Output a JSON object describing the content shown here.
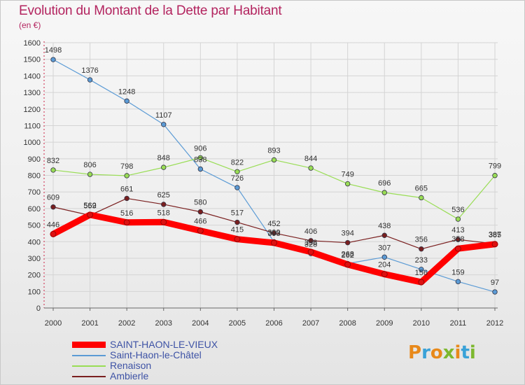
{
  "header": {
    "title": "Evolution du Montant de la Dette par Habitant",
    "subtitle": "(en €)"
  },
  "logo": {
    "text": "Proxiti",
    "colors": [
      "#e8891a",
      "#3aa2d8",
      "#e8891a",
      "#7db82f",
      "#e8891a",
      "#3aa2d8",
      "#7db82f"
    ]
  },
  "chart_data": {
    "type": "line",
    "title": "Evolution du Montant de la Dette par Habitant",
    "subtitle": "(en €)",
    "x": [
      "2000",
      "2001",
      "2002",
      "2003",
      "2004",
      "2005",
      "2006",
      "2007",
      "2008",
      "2009",
      "2010",
      "2011",
      "2012"
    ],
    "ylim": [
      0,
      1600
    ],
    "yticks": [
      0,
      100,
      200,
      300,
      400,
      500,
      600,
      700,
      800,
      900,
      1000,
      1100,
      1200,
      1300,
      1400,
      1500,
      1600
    ],
    "grid": true,
    "legend_position": "bottom-left",
    "series": [
      {
        "name": "SAINT-HAON-LE-VIEUX",
        "color": "#ff0000",
        "values": [
          446,
          562,
          516,
          518,
          466,
          415,
          393,
          338,
          262,
          204,
          156,
          358,
          385
        ],
        "labels": [
          "446",
          "562",
          "516",
          "518",
          "466",
          "415",
          "393",
          "338",
          "262",
          "204",
          "156",
          "358",
          "385"
        ]
      },
      {
        "name": "Saint-Haon-le-Châtel",
        "color": "#5b9bd5",
        "values": [
          1498,
          1376,
          1248,
          1107,
          838,
          726,
          399,
          328,
          268,
          307,
          233,
          159,
          97
        ],
        "labels": [
          "1498",
          "1376",
          "1248",
          "1107",
          "838",
          "726",
          "399",
          "328",
          "268",
          "307",
          "233",
          "159",
          "97"
        ]
      },
      {
        "name": "Renaison",
        "color": "#99dd55",
        "values": [
          832,
          806,
          798,
          848,
          906,
          822,
          893,
          844,
          749,
          696,
          665,
          536,
          799
        ],
        "labels": [
          "832",
          "806",
          "798",
          "848",
          "906",
          "822",
          "893",
          "844",
          "749",
          "696",
          "665",
          "536",
          "799"
        ]
      },
      {
        "name": "Ambierle",
        "color": "#7a1f1f",
        "values": [
          609,
          559,
          661,
          625,
          580,
          517,
          452,
          406,
          394,
          438,
          356,
          413,
          387
        ],
        "labels": [
          "609",
          "559",
          "661",
          "625",
          "580",
          "517",
          "452",
          "406",
          "394",
          "438",
          "356",
          "413",
          "387"
        ]
      }
    ]
  }
}
